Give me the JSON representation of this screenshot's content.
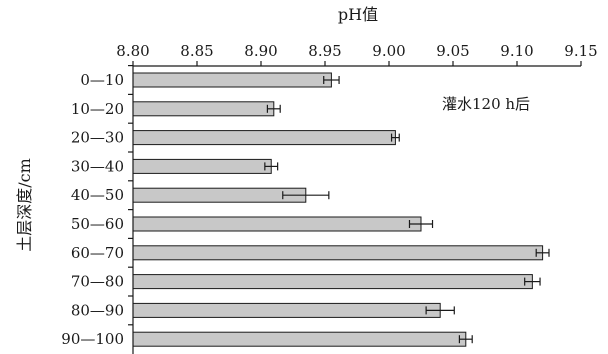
{
  "chart_data": {
    "type": "bar",
    "orientation": "horizontal",
    "title": "",
    "xlabel": "pH值",
    "ylabel": "土层深度/cm",
    "annotation": "灌水120 h后",
    "xlim": [
      8.8,
      9.15
    ],
    "xticks": [
      "8.80",
      "8.85",
      "8.90",
      "8.95",
      "9.00",
      "9.05",
      "9.10",
      "9.15"
    ],
    "x_axis_position": "top",
    "grid": false,
    "bar_color": "#c8c8c8",
    "categories": [
      "0—10",
      "10—20",
      "20—30",
      "30—40",
      "40—50",
      "50—60",
      "60—70",
      "70—80",
      "80—90",
      "90—100"
    ],
    "values": [
      8.955,
      8.91,
      9.005,
      8.908,
      8.935,
      9.025,
      9.12,
      9.112,
      9.04,
      9.06
    ],
    "errors": [
      0.006,
      0.005,
      0.003,
      0.005,
      0.018,
      0.009,
      0.005,
      0.006,
      0.011,
      0.005
    ]
  }
}
